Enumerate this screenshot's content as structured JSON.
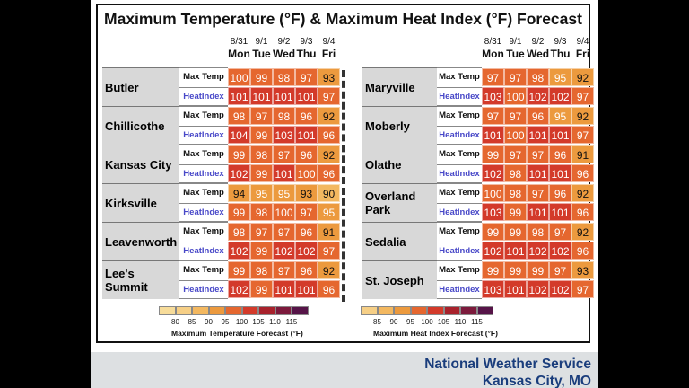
{
  "title": "Maximum Temperature (°F) & Maximum Heat Index (°F) Forecast",
  "days": [
    {
      "date": "8/31",
      "dow": "Mon"
    },
    {
      "date": "9/1",
      "dow": "Tue"
    },
    {
      "date": "9/2",
      "dow": "Wed"
    },
    {
      "date": "9/3",
      "dow": "Thu"
    },
    {
      "date": "9/4",
      "dow": "Fri"
    }
  ],
  "row_labels": {
    "max_temp": "Max Temp",
    "heat_index": "HeatIndex"
  },
  "chart_data": {
    "type": "table",
    "title": "Maximum Temperature (°F) & Maximum Heat Index (°F) Forecast",
    "columns": [
      "8/31 Mon",
      "9/1 Tue",
      "9/2 Wed",
      "9/3 Thu",
      "9/4 Fri"
    ],
    "left_cities": [
      {
        "name": "Butler",
        "max_temp": [
          100,
          99,
          98,
          97,
          93
        ],
        "heat_index": [
          101,
          101,
          101,
          101,
          97
        ]
      },
      {
        "name": "Chillicothe",
        "max_temp": [
          98,
          97,
          98,
          96,
          92
        ],
        "heat_index": [
          104,
          99,
          103,
          101,
          96
        ]
      },
      {
        "name": "Kansas City",
        "max_temp": [
          99,
          98,
          97,
          96,
          92
        ],
        "heat_index": [
          102,
          99,
          101,
          100,
          96
        ]
      },
      {
        "name": "Kirksville",
        "max_temp": [
          94,
          95,
          95,
          93,
          90
        ],
        "heat_index": [
          99,
          98,
          100,
          97,
          95
        ]
      },
      {
        "name": "Leavenworth",
        "max_temp": [
          98,
          97,
          97,
          96,
          91
        ],
        "heat_index": [
          102,
          99,
          102,
          102,
          97
        ]
      },
      {
        "name": "Lee's Summit",
        "max_temp": [
          99,
          98,
          97,
          96,
          92
        ],
        "heat_index": [
          102,
          99,
          101,
          101,
          96
        ]
      }
    ],
    "right_cities": [
      {
        "name": "Maryville",
        "max_temp": [
          97,
          97,
          98,
          95,
          92
        ],
        "heat_index": [
          103,
          100,
          102,
          102,
          97
        ]
      },
      {
        "name": "Moberly",
        "max_temp": [
          97,
          97,
          96,
          95,
          92
        ],
        "heat_index": [
          101,
          100,
          101,
          101,
          97
        ]
      },
      {
        "name": "Olathe",
        "max_temp": [
          99,
          97,
          97,
          96,
          91
        ],
        "heat_index": [
          102,
          98,
          101,
          101,
          96
        ]
      },
      {
        "name": "Overland Park",
        "max_temp": [
          100,
          98,
          97,
          96,
          92
        ],
        "heat_index": [
          103,
          99,
          101,
          101,
          96
        ]
      },
      {
        "name": "Sedalia",
        "max_temp": [
          99,
          99,
          98,
          97,
          92
        ],
        "heat_index": [
          102,
          101,
          102,
          102,
          96
        ]
      },
      {
        "name": "St. Joseph",
        "max_temp": [
          99,
          99,
          99,
          97,
          93
        ],
        "heat_index": [
          103,
          101,
          102,
          102,
          97
        ]
      }
    ],
    "legends": [
      {
        "title": "Maximum Temperature Forecast (°F)",
        "ticks": [
          80,
          85,
          90,
          95,
          100,
          105,
          110,
          115
        ]
      },
      {
        "title": "Maximum Heat Index Forecast (°F)",
        "ticks": [
          85,
          90,
          95,
          100,
          105,
          110,
          115
        ]
      }
    ],
    "color_scale": [
      {
        "max": 80,
        "color": "#f7dc9a"
      },
      {
        "max": 85,
        "color": "#f6cf86"
      },
      {
        "max": 90,
        "color": "#f3b860"
      },
      {
        "max": 95,
        "color": "#ec9a3e"
      },
      {
        "max": 100,
        "color": "#e5672f"
      },
      {
        "max": 105,
        "color": "#d33a2a"
      },
      {
        "max": 110,
        "color": "#a8222c"
      },
      {
        "max": 115,
        "color": "#7c1a3c"
      },
      {
        "max": 999,
        "color": "#561448"
      }
    ]
  },
  "footer": {
    "line1": "National Weather Service",
    "line2": "Kansas City, MO"
  }
}
